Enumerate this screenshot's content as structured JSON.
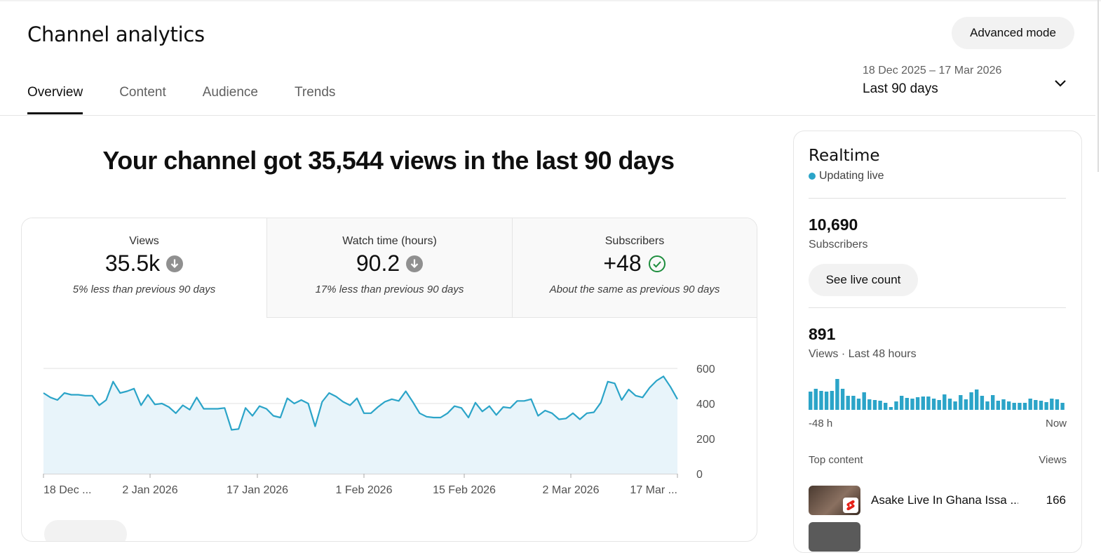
{
  "header": {
    "title": "Channel analytics",
    "advanced_mode_label": "Advanced mode",
    "tabs": [
      {
        "label": "Overview",
        "active": true
      },
      {
        "label": "Content",
        "active": false
      },
      {
        "label": "Audience",
        "active": false
      },
      {
        "label": "Trends",
        "active": false
      }
    ],
    "date_range": "18 Dec 2025 – 17 Mar 2026",
    "period_label": "Last 90 days",
    "period_icon": "chevron-down-icon"
  },
  "headline": "Your channel got 35,544 views in the last 90 days",
  "metrics": [
    {
      "label": "Views",
      "value": "35.5k",
      "icon": "arrow-down-circle-icon",
      "note": "5% less than previous 90 days",
      "selected": true
    },
    {
      "label": "Watch time (hours)",
      "value": "90.2",
      "icon": "arrow-down-circle-icon",
      "note": "17% less than previous 90 days",
      "selected": false
    },
    {
      "label": "Subscribers",
      "value": "+48",
      "icon": "check-circle-icon",
      "note": "About the same as previous 90 days",
      "selected": false
    }
  ],
  "colors": {
    "accent": "#2ba4c8",
    "area_fill": "#e8f4fa",
    "success": "#1e8e3e",
    "neutral_icon": "#909090"
  },
  "chart_data": {
    "type": "area",
    "title": "",
    "xlabel": "",
    "ylabel": "",
    "ylim": [
      0,
      600
    ],
    "yticks": [
      "0",
      "200",
      "400",
      "600"
    ],
    "xticks": [
      "18 Dec ...",
      "2 Jan 2026",
      "17 Jan 2026",
      "1 Feb 2026",
      "15 Feb 2026",
      "2 Mar 2026",
      "17 Mar ..."
    ],
    "x_start": "18 Dec 2025",
    "x_end": "17 Mar 2026",
    "grid": true,
    "series": [
      {
        "values": [
          460,
          435,
          420,
          460,
          450,
          450,
          445,
          445,
          390,
          420,
          525,
          460,
          470,
          485,
          390,
          450,
          395,
          400,
          380,
          345,
          390,
          365,
          435,
          370,
          370,
          370,
          375,
          250,
          255,
          375,
          330,
          385,
          370,
          330,
          320,
          430,
          400,
          420,
          400,
          270,
          410,
          460,
          440,
          410,
          390,
          430,
          345,
          345,
          380,
          410,
          425,
          415,
          470,
          410,
          345,
          325,
          320,
          320,
          345,
          385,
          375,
          320,
          405,
          355,
          385,
          335,
          380,
          375,
          415,
          415,
          425,
          330,
          360,
          345,
          310,
          315,
          345,
          310,
          345,
          350,
          405,
          525,
          515,
          420,
          480,
          445,
          435,
          490,
          530,
          555,
          495,
          425
        ]
      }
    ]
  },
  "realtime": {
    "title": "Realtime",
    "status": "Updating live",
    "subscribers_count": "10,690",
    "subscribers_label": "Subscribers",
    "see_live_label": "See live count",
    "views_count": "891",
    "views_label": "Views · Last 48 hours",
    "axis_start": "-48 h",
    "axis_end": "Now",
    "hourly_views": [
      26,
      30,
      27,
      26,
      27,
      44,
      30,
      20,
      20,
      16,
      25,
      15,
      14,
      13,
      10,
      4,
      12,
      20,
      17,
      16,
      18,
      19,
      19,
      16,
      14,
      22,
      16,
      12,
      21,
      15,
      25,
      29,
      20,
      12,
      21,
      13,
      15,
      12,
      10,
      10,
      10,
      16,
      14,
      13,
      11,
      16,
      15,
      10
    ],
    "top_content_label": "Top content",
    "views_column_label": "Views",
    "top_content": [
      {
        "title": "Asake Live In Ghana Issa ...",
        "views": "166",
        "badge_icon": "shorts-icon"
      }
    ]
  }
}
